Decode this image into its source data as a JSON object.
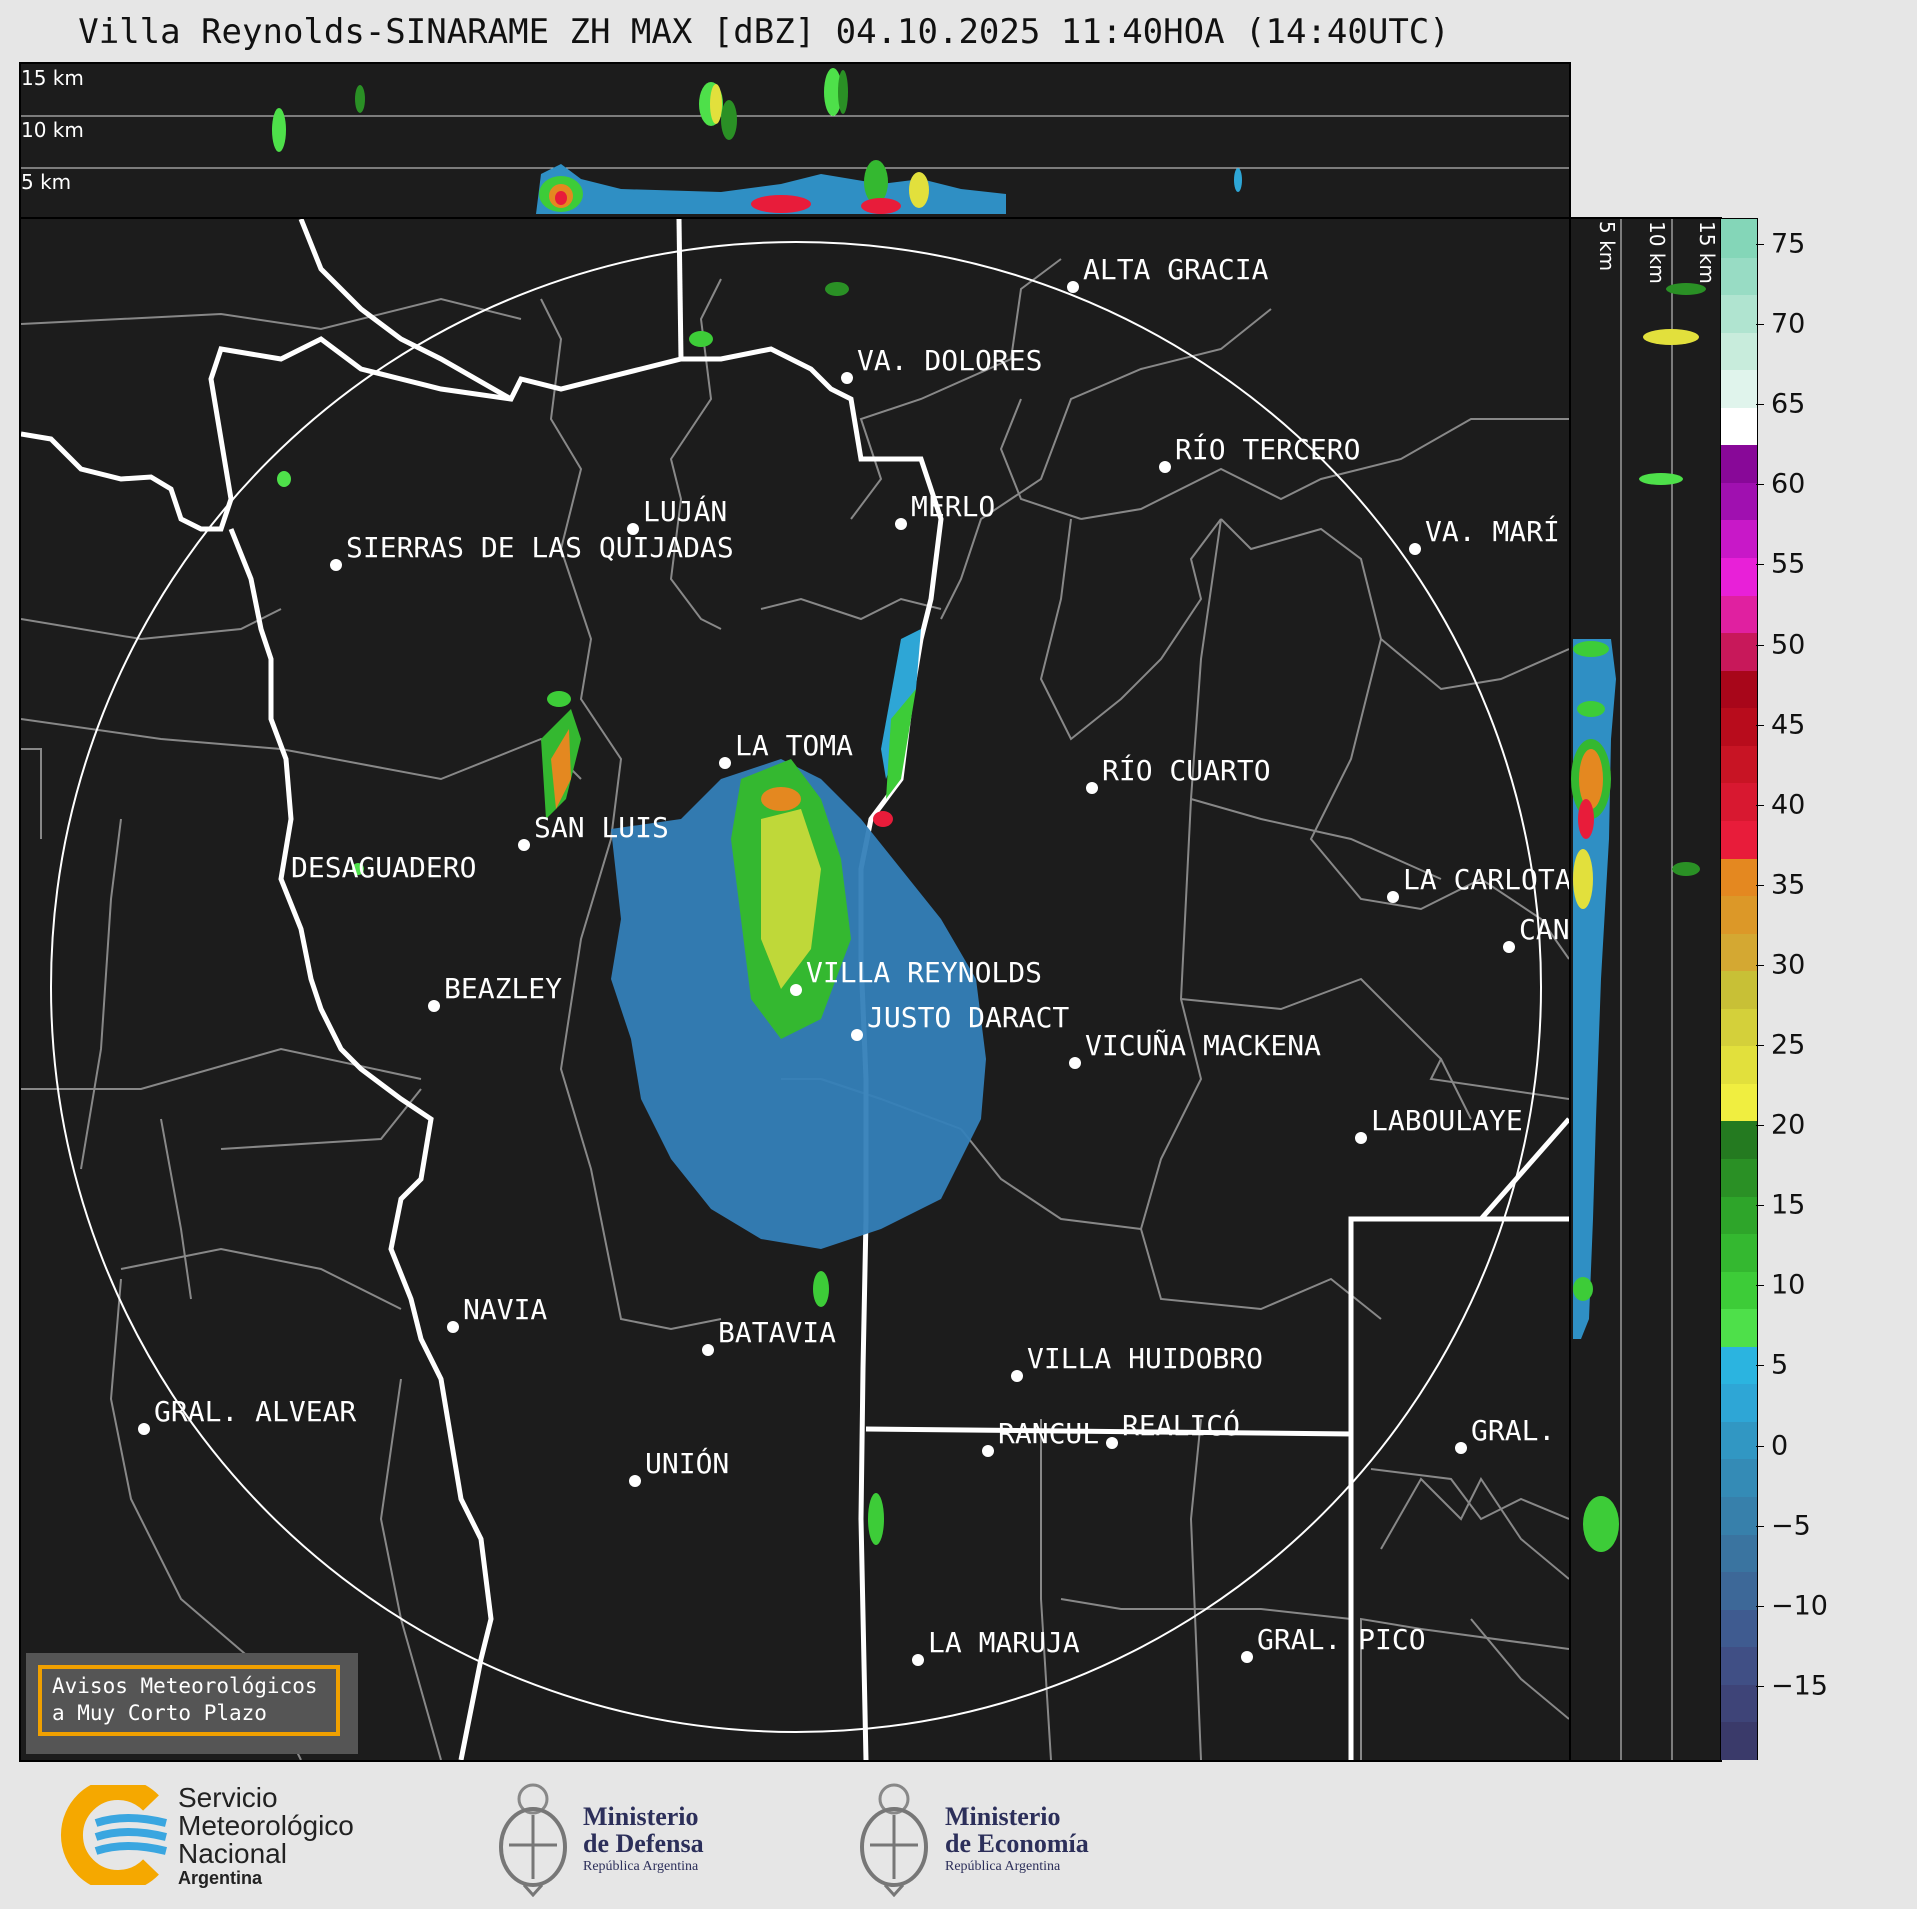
{
  "title": "Villa Reynolds-SINARAME ZH MAX [dBZ] 04.10.2025 11:40HOA (14:40UTC)",
  "top_panel": {
    "levels": [
      "15 km",
      "10 km",
      "5 km"
    ]
  },
  "side_panel": {
    "levels": [
      "5 km",
      "10 km",
      "15 km"
    ]
  },
  "map": {
    "cities": [
      {
        "name": "ALTA GRACIA"
      },
      {
        "name": "VA. DOLORES"
      },
      {
        "name": "RÍO TERCERO"
      },
      {
        "name": "LUJÁN"
      },
      {
        "name": "MERLO"
      },
      {
        "name": "SIERRAS DE LAS QUIJADAS"
      },
      {
        "name": "VA. MARÍ"
      },
      {
        "name": "LA TOMA"
      },
      {
        "name": "RÍO CUARTO"
      },
      {
        "name": "SAN LUIS"
      },
      {
        "name": "DESAGUADERO"
      },
      {
        "name": "LA CARLOTA"
      },
      {
        "name": "CAN"
      },
      {
        "name": "VILLA REYNOLDS"
      },
      {
        "name": "BEAZLEY"
      },
      {
        "name": "JUSTO DARACT"
      },
      {
        "name": "VICUÑA MACKENA"
      },
      {
        "name": "LABOULAYE"
      },
      {
        "name": "NAVIA"
      },
      {
        "name": "BATAVIA"
      },
      {
        "name": "VILLA HUIDOBRO"
      },
      {
        "name": "GRAL. ALVEAR"
      },
      {
        "name": "RANCUL"
      },
      {
        "name": "REALICÓ"
      },
      {
        "name": "GRAL."
      },
      {
        "name": "UNIÓN"
      },
      {
        "name": "LA MARUJA"
      },
      {
        "name": "GRAL. PICO"
      }
    ]
  },
  "colorbar": {
    "ticks": [
      "75",
      "70",
      "65",
      "60",
      "55",
      "50",
      "45",
      "40",
      "35",
      "30",
      "25",
      "20",
      "15",
      "10",
      "5",
      "0",
      "−5",
      "−10",
      "−15"
    ],
    "colors": [
      "#3a3a6a",
      "#3e4478",
      "#404f85",
      "#3f5b90",
      "#3d6898",
      "#3a74a0",
      "#3780ab",
      "#348bb6",
      "#3197c3",
      "#2ea6d6",
      "#2bb4e0",
      "#4ee04a",
      "#3dcc38",
      "#34b830",
      "#2ea52a",
      "#2a9025",
      "#247a20",
      "#f0ee40",
      "#e2e03c",
      "#d4d03a",
      "#c8c036",
      "#d4a832",
      "#dc9828",
      "#e48820",
      "#e81c3a",
      "#d81830",
      "#c81424",
      "#b80c1c",
      "#a8061a",
      "#c8185a",
      "#e020a0",
      "#e820d8",
      "#c818c8",
      "#a010b0",
      "#880898",
      "#ffffff",
      "#e0f4ec",
      "#c8ecdc",
      "#b0e4d0",
      "#98dcc4",
      "#84d6b8"
    ],
    "warning": {
      "line1": "Avisos Meteorológicos",
      "line2": "a Muy Corto Plazo"
    }
  },
  "logos": {
    "smn": {
      "line1": "Servicio",
      "line2": "Meteorológico",
      "line3": "Nacional",
      "line4": "Argentina"
    },
    "defensa": {
      "line1": "Ministerio",
      "line2": "de Defensa",
      "line3": "República Argentina"
    },
    "economia": {
      "line1": "Ministerio",
      "line2": "de Economía",
      "line3": "República Argentina"
    }
  }
}
